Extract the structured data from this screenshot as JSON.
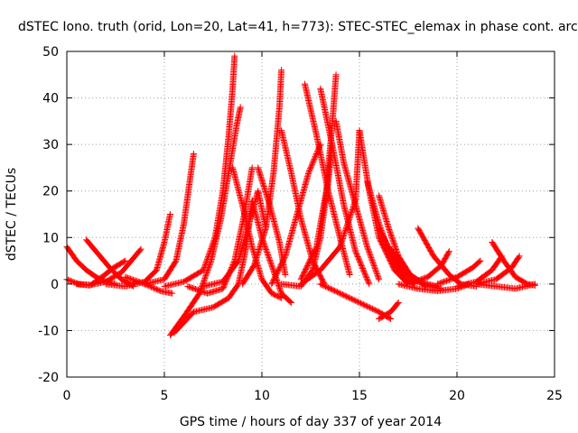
{
  "chart_data": {
    "type": "scatter",
    "title": "dSTEC Iono. truth (orid, Lon=20, Lat=41, h=773): STEC-STEC_elemax in phase cont. arc",
    "xlabel": "GPS time / hours of day 337 of year 2014",
    "ylabel": "dSTEC  / TECUs",
    "xlim": [
      0,
      25
    ],
    "ylim": [
      -20,
      50
    ],
    "xticks": [
      0,
      5,
      10,
      15,
      20,
      25
    ],
    "yticks": [
      -20,
      -10,
      0,
      10,
      20,
      30,
      40,
      50
    ],
    "grid": true,
    "marker": "+",
    "color": "#ff0000",
    "series": [
      {
        "x": [
          0.0,
          0.5,
          1.0,
          1.5,
          2.0,
          2.5
        ],
        "y": [
          8,
          5,
          3,
          1.5,
          0.5,
          0
        ]
      },
      {
        "x": [
          0.0,
          0.6,
          1.2,
          1.8,
          2.4,
          3.0
        ],
        "y": [
          1,
          0,
          -0.3,
          1.5,
          3.5,
          5
        ]
      },
      {
        "x": [
          1.0,
          1.6,
          2.2,
          2.8,
          3.4
        ],
        "y": [
          9.5,
          6.5,
          3.5,
          1,
          -0.5
        ]
      },
      {
        "x": [
          0.5,
          1.2,
          2.0,
          2.8,
          3.4,
          3.8
        ],
        "y": [
          0,
          -0.2,
          0.5,
          2.5,
          5.5,
          7.5
        ]
      },
      {
        "x": [
          2.0,
          3.0,
          4.0,
          4.6,
          5.0,
          5.3
        ],
        "y": [
          0,
          -0.5,
          0.5,
          3,
          9,
          15
        ]
      },
      {
        "x": [
          3.0,
          4.0,
          4.8,
          5.4
        ],
        "y": [
          1.5,
          0,
          -1.5,
          -2
        ]
      },
      {
        "x": [
          4.0,
          5.0,
          5.6,
          6.0,
          6.3,
          6.5
        ],
        "y": [
          0,
          1,
          5,
          13,
          22,
          28
        ]
      },
      {
        "x": [
          5.0,
          6.0,
          7.0,
          7.6,
          8.0,
          8.3,
          8.5,
          8.6
        ],
        "y": [
          -0.5,
          0.5,
          3,
          10,
          20,
          32,
          42,
          49
        ]
      },
      {
        "x": [
          5.3,
          6.0,
          6.8,
          7.4,
          7.9,
          8.3,
          8.7,
          8.9
        ],
        "y": [
          -11,
          -7,
          -2,
          5,
          14,
          24,
          34,
          38
        ]
      },
      {
        "x": [
          5.5,
          6.5,
          7.5,
          8.3,
          8.8,
          9.2,
          9.5
        ],
        "y": [
          -10.5,
          -6,
          -5,
          -3,
          0,
          8,
          18
        ]
      },
      {
        "x": [
          6.2,
          7.2,
          8.0,
          8.6,
          9.1,
          9.5
        ],
        "y": [
          -0.5,
          -2,
          -1,
          5,
          15,
          25
        ]
      },
      {
        "x": [
          7.0,
          8.0,
          8.8,
          9.4,
          9.8,
          10.2
        ],
        "y": [
          -0.5,
          0.5,
          5,
          14,
          20,
          12
        ]
      },
      {
        "x": [
          8.5,
          9.0,
          9.5,
          10.0,
          10.5,
          11.0
        ],
        "y": [
          25,
          17,
          8,
          1,
          -2,
          -3
        ]
      },
      {
        "x": [
          9.0,
          9.6,
          10.2,
          10.6,
          10.9,
          11.0
        ],
        "y": [
          0,
          4,
          12,
          24,
          38,
          46
        ]
      },
      {
        "x": [
          9.5,
          10.0,
          10.5,
          11.0,
          11.5
        ],
        "y": [
          18,
          10,
          4,
          -2,
          -4
        ]
      },
      {
        "x": [
          9.8,
          10.4,
          10.9,
          11.2
        ],
        "y": [
          25,
          17,
          9,
          2
        ]
      },
      {
        "x": [
          10.5,
          11.2,
          11.8,
          12.4,
          13.0
        ],
        "y": [
          0,
          6,
          15,
          24,
          30
        ]
      },
      {
        "x": [
          11.0,
          11.5,
          12.0,
          12.6,
          13.2
        ],
        "y": [
          33,
          24,
          14,
          5,
          0
        ]
      },
      {
        "x": [
          11.0,
          12.0,
          12.6,
          13.0,
          13.4,
          13.6
        ],
        "y": [
          0,
          -0.5,
          3,
          10,
          22,
          30
        ]
      },
      {
        "x": [
          12.0,
          12.8,
          13.3,
          13.6,
          13.8
        ],
        "y": [
          1,
          8,
          20,
          34,
          45
        ]
      },
      {
        "x": [
          12.2,
          12.8,
          13.4,
          14.0,
          14.5
        ],
        "y": [
          43,
          32,
          20,
          10,
          2
        ]
      },
      {
        "x": [
          13.0,
          13.6,
          14.2,
          14.8,
          15.5
        ],
        "y": [
          42,
          30,
          17,
          7,
          0
        ]
      },
      {
        "x": [
          13.8,
          14.2,
          14.8,
          15.4,
          16.0
        ],
        "y": [
          35,
          26,
          17,
          8,
          1
        ]
      },
      {
        "x": [
          12.0,
          13.0,
          14.0,
          14.8,
          15.0
        ],
        "y": [
          0,
          3,
          8,
          18,
          33
        ]
      },
      {
        "x": [
          13.0,
          14.0,
          15.0,
          16.0,
          16.6
        ],
        "y": [
          0,
          -2,
          -4,
          -6,
          -7.5
        ]
      },
      {
        "x": [
          15.0,
          15.5,
          16.0,
          16.8,
          17.5
        ],
        "y": [
          33,
          20,
          10,
          3,
          0
        ]
      },
      {
        "x": [
          15.4,
          16.0,
          16.6,
          17.2,
          17.8
        ],
        "y": [
          22,
          13,
          6,
          2,
          0
        ]
      },
      {
        "x": [
          16.0,
          16.5,
          17.0,
          17.6,
          18.4
        ],
        "y": [
          19,
          12,
          6,
          2,
          -0.5
        ]
      },
      {
        "x": [
          16.0,
          16.6,
          17.2,
          18.0,
          19.0
        ],
        "y": [
          12,
          7,
          3,
          0.5,
          -0.5
        ]
      },
      {
        "x": [
          16.5,
          17.0,
          17.6,
          18.3,
          19.2
        ],
        "y": [
          8,
          5,
          2,
          0,
          -1
        ]
      },
      {
        "x": [
          16.0,
          16.6,
          17.0
        ],
        "y": [
          -7.5,
          -6,
          -4
        ]
      },
      {
        "x": [
          17.0,
          18.0,
          19.0,
          20.0,
          20.6
        ],
        "y": [
          0,
          -1,
          -1.5,
          -1,
          0
        ]
      },
      {
        "x": [
          18.0,
          18.8,
          19.6,
          20.2,
          21.0
        ],
        "y": [
          12,
          6,
          2,
          0,
          -0.5
        ]
      },
      {
        "x": [
          17.5,
          18.5,
          19.2,
          19.6
        ],
        "y": [
          0,
          1.5,
          4,
          7
        ]
      },
      {
        "x": [
          19.0,
          20.0,
          20.8,
          21.2
        ],
        "y": [
          0,
          1.5,
          3.5,
          5
        ]
      },
      {
        "x": [
          20.0,
          21.0,
          21.8,
          22.3
        ],
        "y": [
          -0.5,
          0.5,
          3,
          6
        ]
      },
      {
        "x": [
          21.8,
          22.4,
          23.0,
          23.6,
          24.0
        ],
        "y": [
          9,
          5,
          1.5,
          0,
          -0.3
        ]
      },
      {
        "x": [
          21.0,
          22.0,
          22.8,
          23.2
        ],
        "y": [
          0,
          1,
          3.5,
          6
        ]
      },
      {
        "x": [
          21.0,
          22.0,
          23.0,
          24.0
        ],
        "y": [
          0,
          -0.5,
          -1,
          0
        ]
      }
    ]
  }
}
